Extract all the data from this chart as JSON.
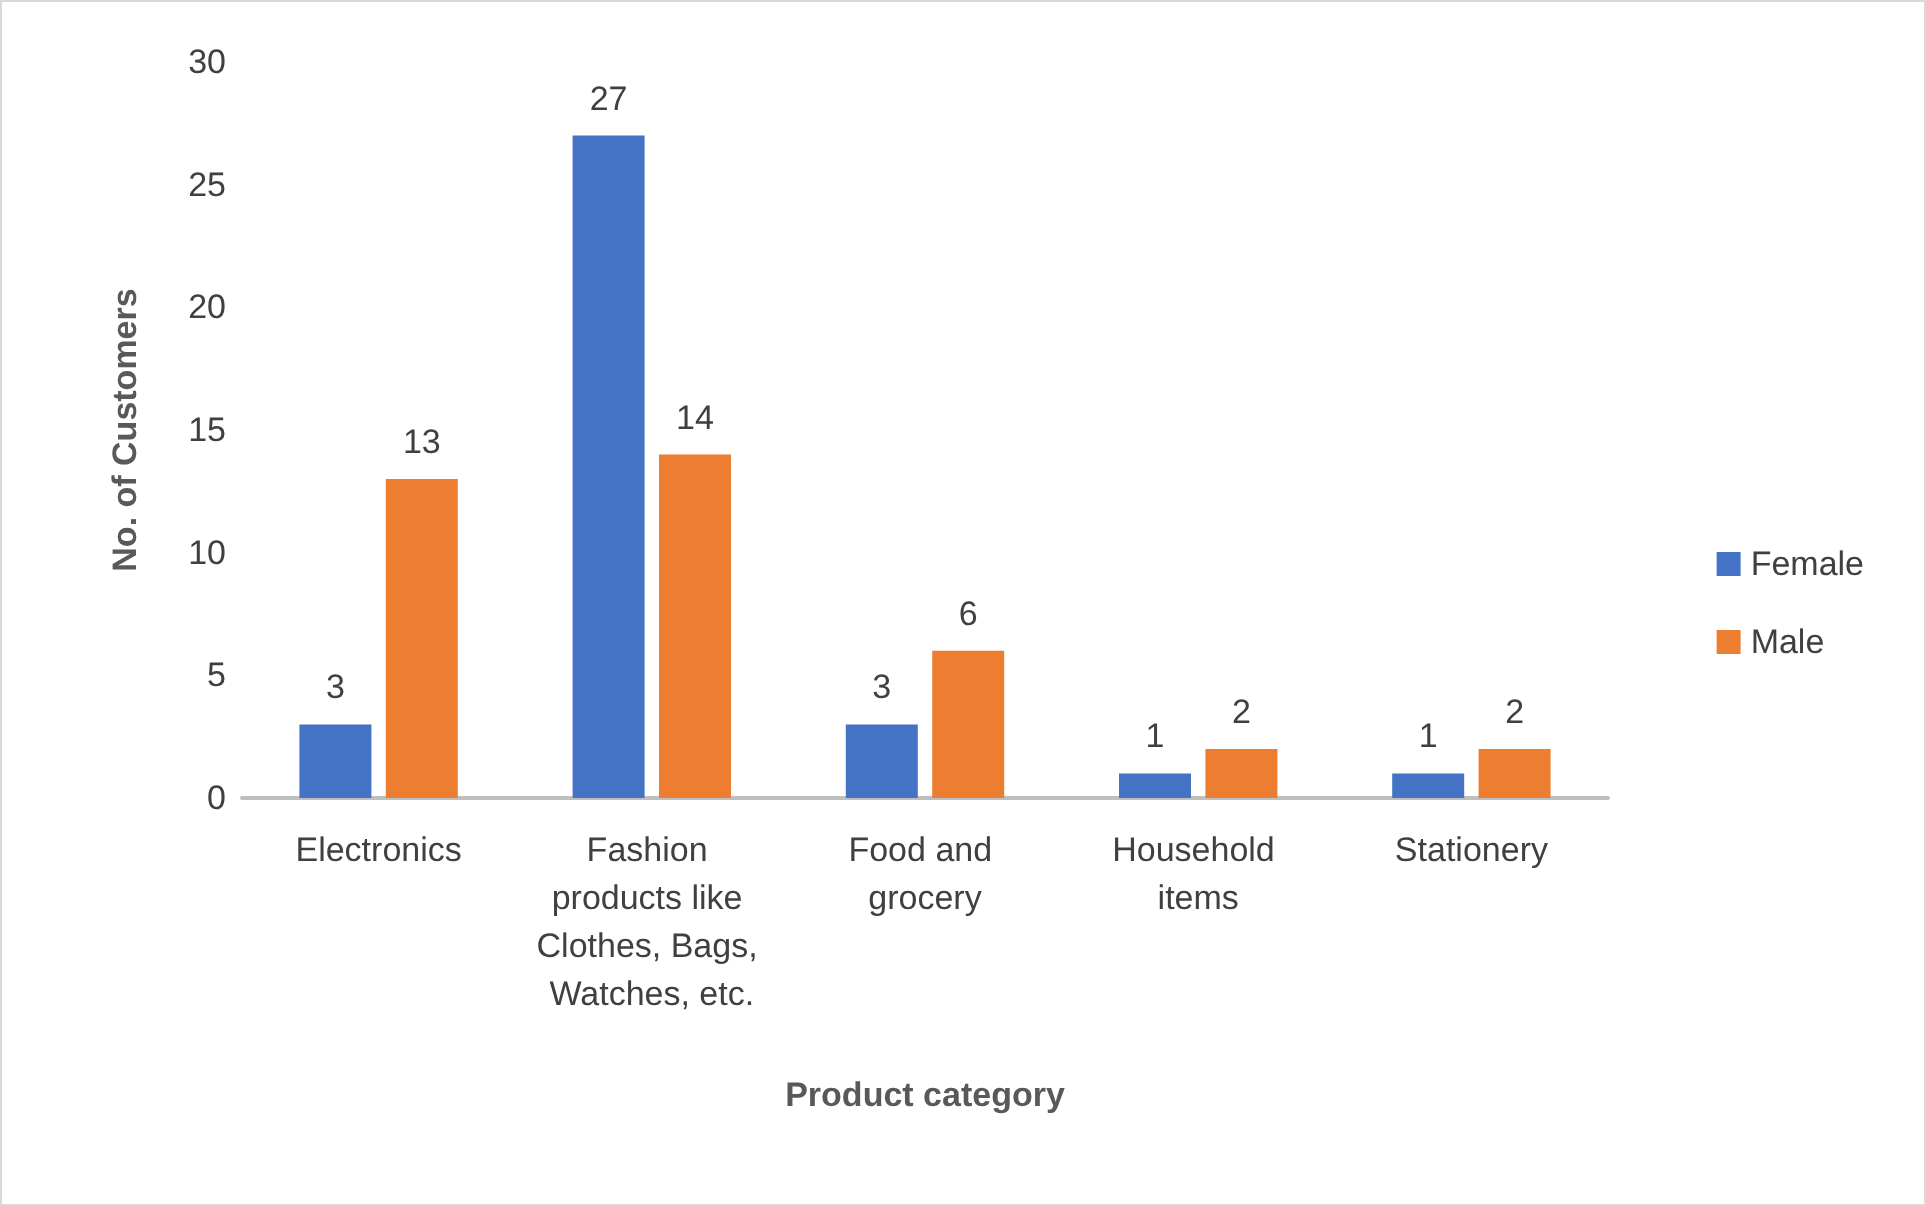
{
  "chart_data": {
    "type": "bar",
    "xlabel": "Product category",
    "ylabel": "No. of Customers",
    "categories": [
      "Electronics",
      "Fashion products like Clothes, Bags, Watches, etc.",
      "Food and grocery",
      "Household items",
      "Stationery"
    ],
    "series": [
      {
        "name": "Female",
        "color": "#4472c4",
        "values": [
          3,
          27,
          3,
          1,
          1
        ]
      },
      {
        "name": "Male",
        "color": "#ed7d31",
        "values": [
          13,
          14,
          6,
          2,
          2
        ]
      }
    ],
    "ylim": [
      0,
      30
    ],
    "yticks": [
      0,
      5,
      10,
      15,
      20,
      25,
      30
    ],
    "grid": false,
    "legend": "right",
    "data_labels": true
  }
}
